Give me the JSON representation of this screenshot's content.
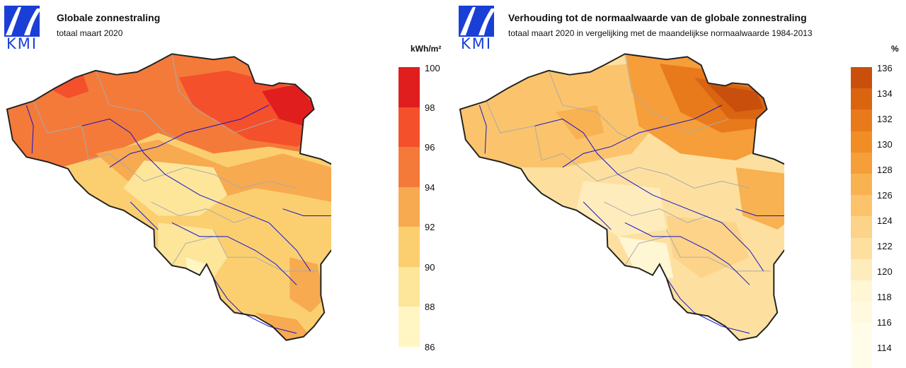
{
  "brand": {
    "logo_text": "KMI"
  },
  "left": {
    "title": "Globale zonnestraling",
    "subtitle": "totaal maart 2020",
    "unit": "kWh/m²",
    "ticks": [
      "100",
      "98",
      "96",
      "94",
      "92",
      "90",
      "88",
      "86"
    ],
    "colors": [
      "#e01e1e",
      "#f4502c",
      "#f47a3a",
      "#f7aa50",
      "#fbcf70",
      "#fde69a",
      "#fff6c4"
    ]
  },
  "right": {
    "title": "Verhouding tot de normaalwaarde van de globale zonnestraling",
    "subtitle": "totaal maart 2020 in vergelijking met de maandelijkse normaalwaarde 1984-2013",
    "unit": "%",
    "ticks": [
      "136",
      "134",
      "132",
      "130",
      "128",
      "126",
      "124",
      "122",
      "120",
      "118",
      "116",
      "114"
    ],
    "colors": [
      "#c9500c",
      "#da6410",
      "#e87a1c",
      "#f28d26",
      "#f59e3a",
      "#f8b252",
      "#fbc46c",
      "#fcd388",
      "#fde0a0",
      "#feecbc",
      "#fff6d4"
    ]
  }
}
